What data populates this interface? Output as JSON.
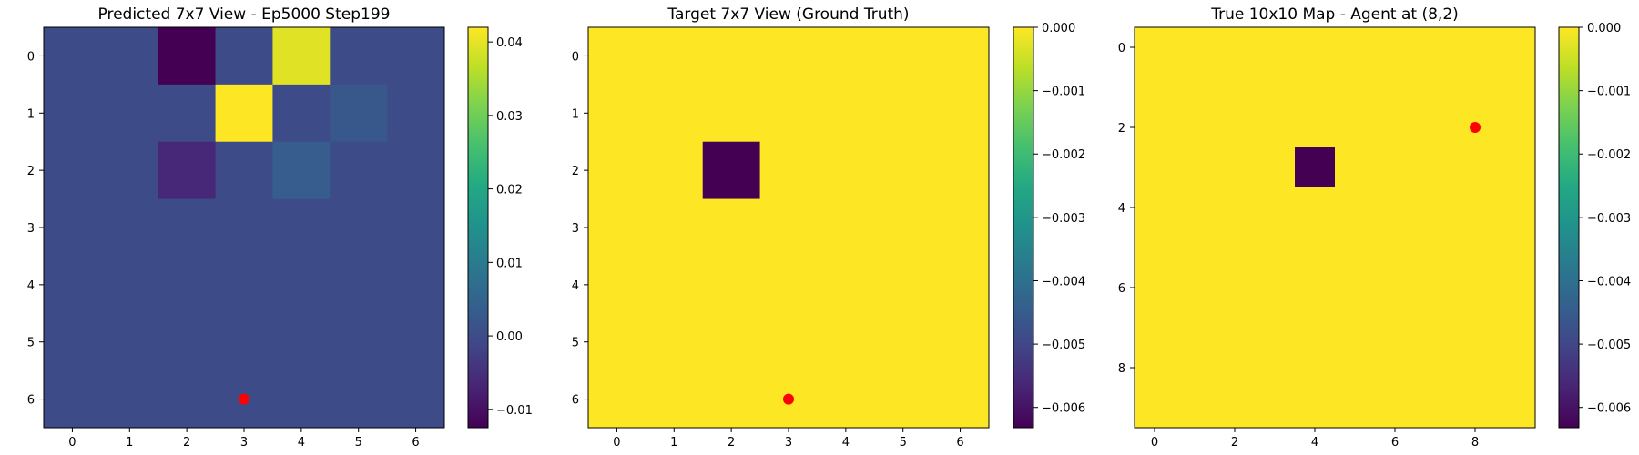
{
  "chart_data": [
    {
      "type": "heatmap",
      "title": "Predicted 7x7 View - Ep5000 Step199",
      "xlabel": "",
      "ylabel": "",
      "grid_size": 7,
      "x_ticks": [
        0,
        1,
        2,
        3,
        4,
        5,
        6
      ],
      "y_ticks": [
        0,
        1,
        2,
        3,
        4,
        5,
        6
      ],
      "values": [
        [
          0.0,
          0.0,
          -0.0125,
          0.0,
          0.0395,
          0.0,
          0.0
        ],
        [
          0.0,
          0.0,
          0.0,
          0.042,
          0.0,
          0.0025,
          0.0
        ],
        [
          0.0,
          0.0,
          -0.0065,
          0.0,
          0.0035,
          0.0,
          0.0
        ],
        [
          0.0,
          0.0,
          0.0,
          0.0,
          0.0,
          0.0,
          0.0
        ],
        [
          0.0,
          0.0,
          0.0,
          0.0,
          0.0,
          0.0,
          0.0
        ],
        [
          0.0,
          0.0,
          0.0,
          0.0,
          0.0,
          0.0,
          0.0
        ],
        [
          0.0,
          0.0,
          0.0,
          0.0,
          0.0,
          0.0,
          0.0
        ]
      ],
      "vmin": -0.0125,
      "vmax": 0.042,
      "colormap": "viridis",
      "colorbar_ticks": [
        {
          "value": 0.04,
          "label": "0.04"
        },
        {
          "value": 0.03,
          "label": "0.03"
        },
        {
          "value": 0.02,
          "label": "0.02"
        },
        {
          "value": 0.01,
          "label": "0.01"
        },
        {
          "value": 0.0,
          "label": "0.00"
        },
        {
          "value": -0.01,
          "label": "−0.01"
        }
      ],
      "agent_marker": {
        "x": 3,
        "y": 6,
        "color": "#ff0000"
      }
    },
    {
      "type": "heatmap",
      "title": "Target 7x7 View (Ground Truth)",
      "xlabel": "",
      "ylabel": "",
      "grid_size": 7,
      "x_ticks": [
        0,
        1,
        2,
        3,
        4,
        5,
        6
      ],
      "y_ticks": [
        0,
        1,
        2,
        3,
        4,
        5,
        6
      ],
      "values": [
        [
          0,
          0,
          0,
          0,
          0,
          0,
          0
        ],
        [
          0,
          0,
          0,
          0,
          0,
          0,
          0
        ],
        [
          0,
          0,
          -0.00632,
          0,
          0,
          0,
          0
        ],
        [
          0,
          0,
          0,
          0,
          0,
          0,
          0
        ],
        [
          0,
          0,
          0,
          0,
          0,
          0,
          0
        ],
        [
          0,
          0,
          0,
          0,
          0,
          0,
          0
        ],
        [
          0,
          0,
          0,
          0,
          0,
          0,
          0
        ]
      ],
      "vmin": -0.00632,
      "vmax": 0.0,
      "colormap": "viridis",
      "colorbar_ticks": [
        {
          "value": 0.0,
          "label": "0.000"
        },
        {
          "value": -0.001,
          "label": "−0.001"
        },
        {
          "value": -0.002,
          "label": "−0.002"
        },
        {
          "value": -0.003,
          "label": "−0.003"
        },
        {
          "value": -0.004,
          "label": "−0.004"
        },
        {
          "value": -0.005,
          "label": "−0.005"
        },
        {
          "value": -0.006,
          "label": "−0.006"
        }
      ],
      "agent_marker": {
        "x": 3,
        "y": 6,
        "color": "#ff0000"
      }
    },
    {
      "type": "heatmap",
      "title": "True 10x10 Map - Agent at (8,2)",
      "xlabel": "",
      "ylabel": "",
      "grid_size": 10,
      "x_ticks": [
        0,
        2,
        4,
        6,
        8
      ],
      "y_ticks": [
        0,
        2,
        4,
        6,
        8
      ],
      "values": [
        [
          0,
          0,
          0,
          0,
          0,
          0,
          0,
          0,
          0,
          0
        ],
        [
          0,
          0,
          0,
          0,
          0,
          0,
          0,
          0,
          0,
          0
        ],
        [
          0,
          0,
          0,
          0,
          0,
          0,
          0,
          0,
          0,
          0
        ],
        [
          0,
          0,
          0,
          0,
          -0.00632,
          0,
          0,
          0,
          0,
          0
        ],
        [
          0,
          0,
          0,
          0,
          0,
          0,
          0,
          0,
          0,
          0
        ],
        [
          0,
          0,
          0,
          0,
          0,
          0,
          0,
          0,
          0,
          0
        ],
        [
          0,
          0,
          0,
          0,
          0,
          0,
          0,
          0,
          0,
          0
        ],
        [
          0,
          0,
          0,
          0,
          0,
          0,
          0,
          0,
          0,
          0
        ],
        [
          0,
          0,
          0,
          0,
          0,
          0,
          0,
          0,
          0,
          0
        ],
        [
          0,
          0,
          0,
          0,
          0,
          0,
          0,
          0,
          0,
          0
        ]
      ],
      "vmin": -0.00632,
      "vmax": 0.0,
      "colormap": "viridis",
      "colorbar_ticks": [
        {
          "value": 0.0,
          "label": "0.000"
        },
        {
          "value": -0.001,
          "label": "−0.001"
        },
        {
          "value": -0.002,
          "label": "−0.002"
        },
        {
          "value": -0.003,
          "label": "−0.003"
        },
        {
          "value": -0.004,
          "label": "−0.004"
        },
        {
          "value": -0.005,
          "label": "−0.005"
        },
        {
          "value": -0.006,
          "label": "−0.006"
        }
      ],
      "agent_marker": {
        "x": 8,
        "y": 2,
        "color": "#ff0000"
      }
    }
  ]
}
